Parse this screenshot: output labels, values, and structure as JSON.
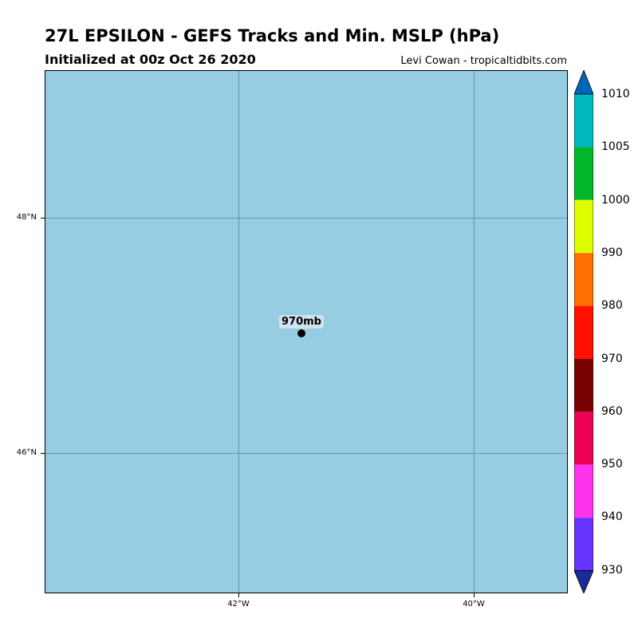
{
  "title": "27L EPSILON - GEFS Tracks and Min. MSLP (hPa)",
  "subtitle": "Initialized at 00z Oct 26 2020",
  "credit": "Levi Cowan - tropicaltidbits.com",
  "map": {
    "background_color": "#96cde3",
    "lat_labels": [
      "48°N",
      "46°N"
    ],
    "lon_labels": [
      "42°W",
      "40°W"
    ],
    "storm": {
      "label": "970mb",
      "lat": 47.0,
      "lon": -41.5,
      "pressure_hpa": 970
    }
  },
  "colorbar": {
    "labels": [
      "1010",
      "1005",
      "1000",
      "990",
      "980",
      "970",
      "960",
      "950",
      "940",
      "930"
    ],
    "colors": [
      "#0066bb",
      "#00b8c0",
      "#00b82a",
      "#ddff00",
      "#ff7000",
      "#ff1000",
      "#780000",
      "#ee0055",
      "#ff33ee",
      "#6633ff",
      "#1a2a99"
    ]
  }
}
